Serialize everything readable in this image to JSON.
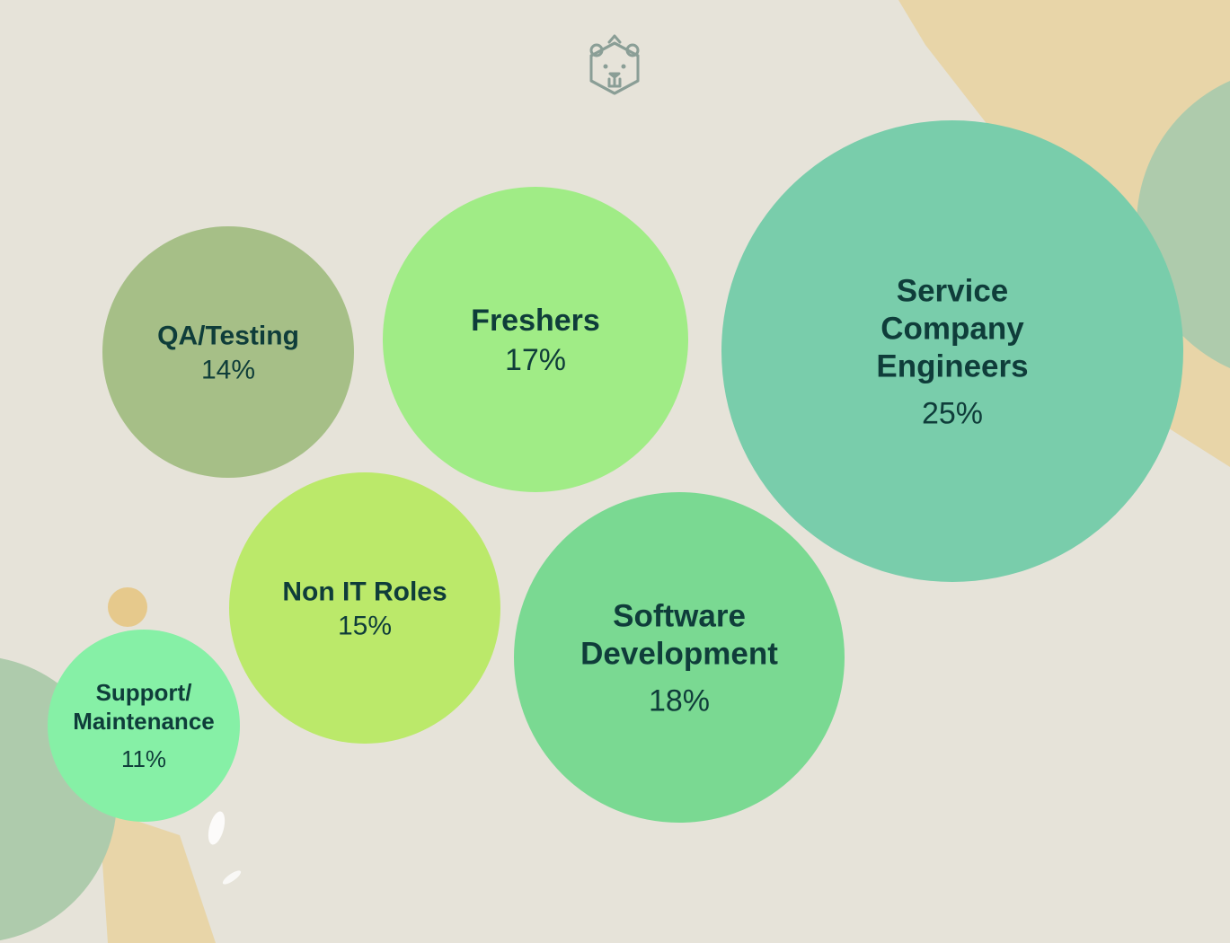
{
  "chart_data": {
    "type": "bubble",
    "title": "",
    "bubbles": [
      {
        "name": "QA/Testing",
        "label_lines": [
          "QA/Testing"
        ],
        "value": 14,
        "value_text": "14%",
        "color": "#a6bf87"
      },
      {
        "name": "Freshers",
        "label_lines": [
          "Freshers"
        ],
        "value": 17,
        "value_text": "17%",
        "color": "#a0ec86"
      },
      {
        "name": "Service Company Engineers",
        "label_lines": [
          "Service",
          "Company",
          "Engineers"
        ],
        "value": 25,
        "value_text": "25%",
        "color": "#79cdab"
      },
      {
        "name": "Non IT Roles",
        "label_lines": [
          "Non IT Roles"
        ],
        "value": 15,
        "value_text": "15%",
        "color": "#bbe96a"
      },
      {
        "name": "Software Development",
        "label_lines": [
          "Software",
          "Development"
        ],
        "value": 18,
        "value_text": "18%",
        "color": "#7ad992"
      },
      {
        "name": "Support/Maintenance",
        "label_lines": [
          "Support/",
          "Maintenance"
        ],
        "value": 11,
        "value_text": "11%",
        "color": "#86f0a6"
      }
    ]
  },
  "decor": {
    "logo": "bear-logo-icon",
    "blob_colors": [
      "#e8d29f",
      "#aecbac",
      "#e6c98c"
    ]
  }
}
